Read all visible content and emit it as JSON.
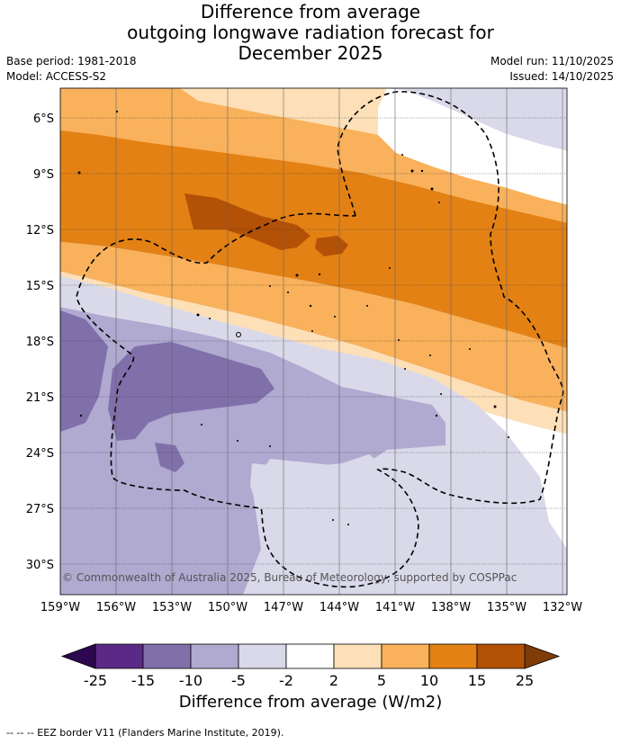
{
  "title": {
    "line1": "Difference from average",
    "line2": "outgoing longwave radiation forecast for",
    "line3": "December 2025"
  },
  "meta": {
    "base_period": "Base period: 1981-2018",
    "model": "Model: ACCESS-S2",
    "model_run": "Model run: 11/10/2025",
    "issued": "Issued: 14/10/2025"
  },
  "map": {
    "lat_ticks": [
      "6°S",
      "9°S",
      "12°S",
      "15°S",
      "18°S",
      "21°S",
      "24°S",
      "27°S",
      "30°S"
    ],
    "lon_ticks": [
      "159°W",
      "156°W",
      "153°W",
      "150°W",
      "147°W",
      "144°W",
      "141°W",
      "138°W",
      "135°W",
      "132°W"
    ],
    "copyright": "© Commonwealth of Australia 2025, Bureau of Meteorology, supported by COSPPac"
  },
  "colorbar": {
    "ticks": [
      "-25",
      "-15",
      "-10",
      "-5",
      "-2",
      "2",
      "5",
      "10",
      "15",
      "25"
    ],
    "colors": [
      "#5b2a86",
      "#8070aa",
      "#b0a9d0",
      "#d9d9ea",
      "#ffffff",
      "#fde0b7",
      "#f9b15b",
      "#e38114",
      "#b35106"
    ],
    "under_color": "#2d0850",
    "over_color": "#7f3b08",
    "label": "Difference from average (W/m2)"
  },
  "footer": {
    "legend": "--  --  -- EEZ border V11 (Flanders Marine Institute, 2019)."
  }
}
